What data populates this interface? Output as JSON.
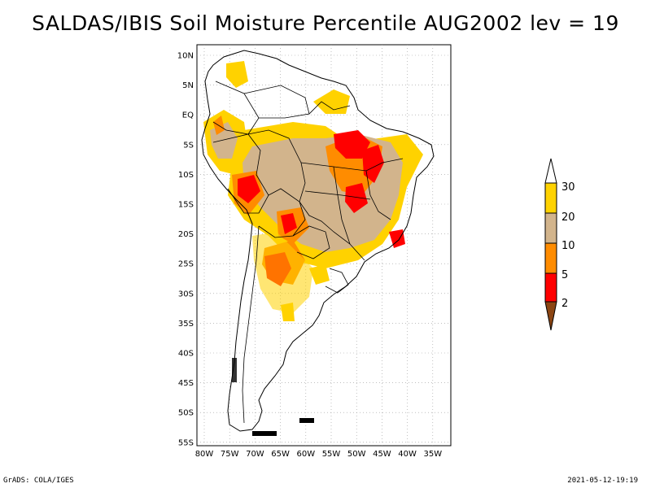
{
  "title": "SALDAS/IBIS Soil Moisture Percentile AUG2002 lev = 19",
  "footer": {
    "left": "GrADS: COLA/IGES",
    "right": "2021-05-12-19:19"
  },
  "map": {
    "lat_labels": [
      "10N",
      "5N",
      "EQ",
      "5S",
      "10S",
      "15S",
      "20S",
      "25S",
      "30S",
      "35S",
      "40S",
      "45S",
      "50S",
      "55S"
    ],
    "lon_labels": [
      "80W",
      "75W",
      "70W",
      "65W",
      "60W",
      "55W",
      "50W",
      "45W",
      "40W",
      "35W"
    ],
    "grid": "dotted"
  },
  "colorbar": {
    "labels": [
      "30",
      "20",
      "10",
      "5",
      "2"
    ],
    "colors": {
      "above_30": "#ffffff",
      "20_30": "#ffd200",
      "10_20": "#d2b48c",
      "5_10": "#ff8c00",
      "2_5": "#ff0000",
      "below_2": "#8b4513"
    }
  },
  "colors": {
    "yellow": "#ffd200",
    "tan": "#d2b48c",
    "orange": "#ff8c00",
    "red": "#ff0000",
    "brown": "#8b4513"
  }
}
